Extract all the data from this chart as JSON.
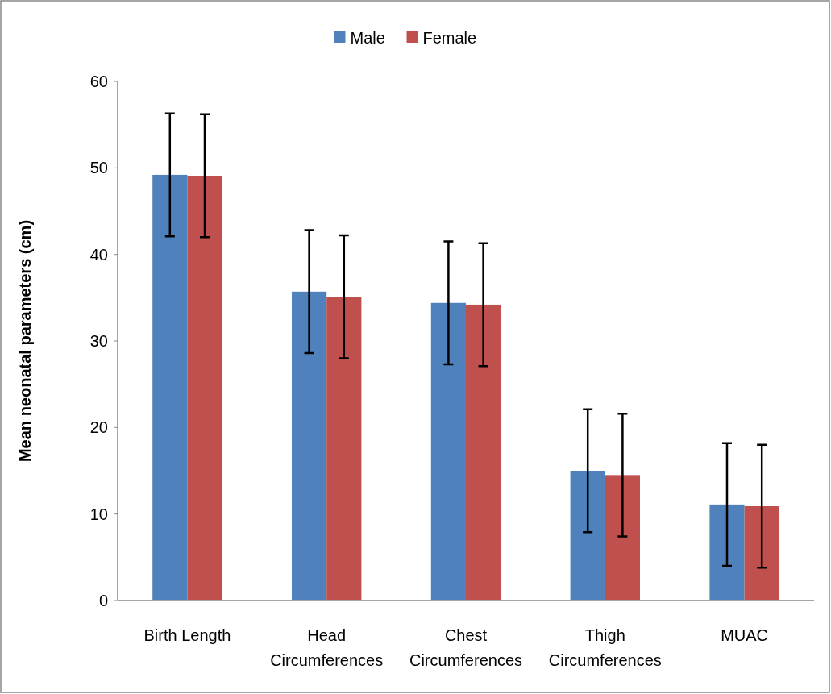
{
  "chart_data": {
    "type": "bar",
    "ylabel": "Mean neonatal parameters (cm)",
    "categories": [
      "Birth Length",
      "Head Circumferences",
      "Chest Circumferences",
      "Thigh Circumferences",
      "MUAC"
    ],
    "series": [
      {
        "name": "Male",
        "color": "#4f81bd",
        "values": [
          49.2,
          35.7,
          34.4,
          15.0,
          11.1
        ],
        "errors": [
          7.1,
          7.1,
          7.1,
          7.1,
          7.1
        ]
      },
      {
        "name": "Female",
        "color": "#c0504d",
        "values": [
          49.1,
          35.1,
          34.2,
          14.5,
          10.9
        ],
        "errors": [
          7.1,
          7.1,
          7.1,
          7.1,
          7.1
        ]
      }
    ],
    "ylim": [
      0,
      60
    ],
    "yticks": [
      0,
      10,
      20,
      30,
      40,
      50,
      60
    ],
    "legend": "top",
    "grid": false
  }
}
